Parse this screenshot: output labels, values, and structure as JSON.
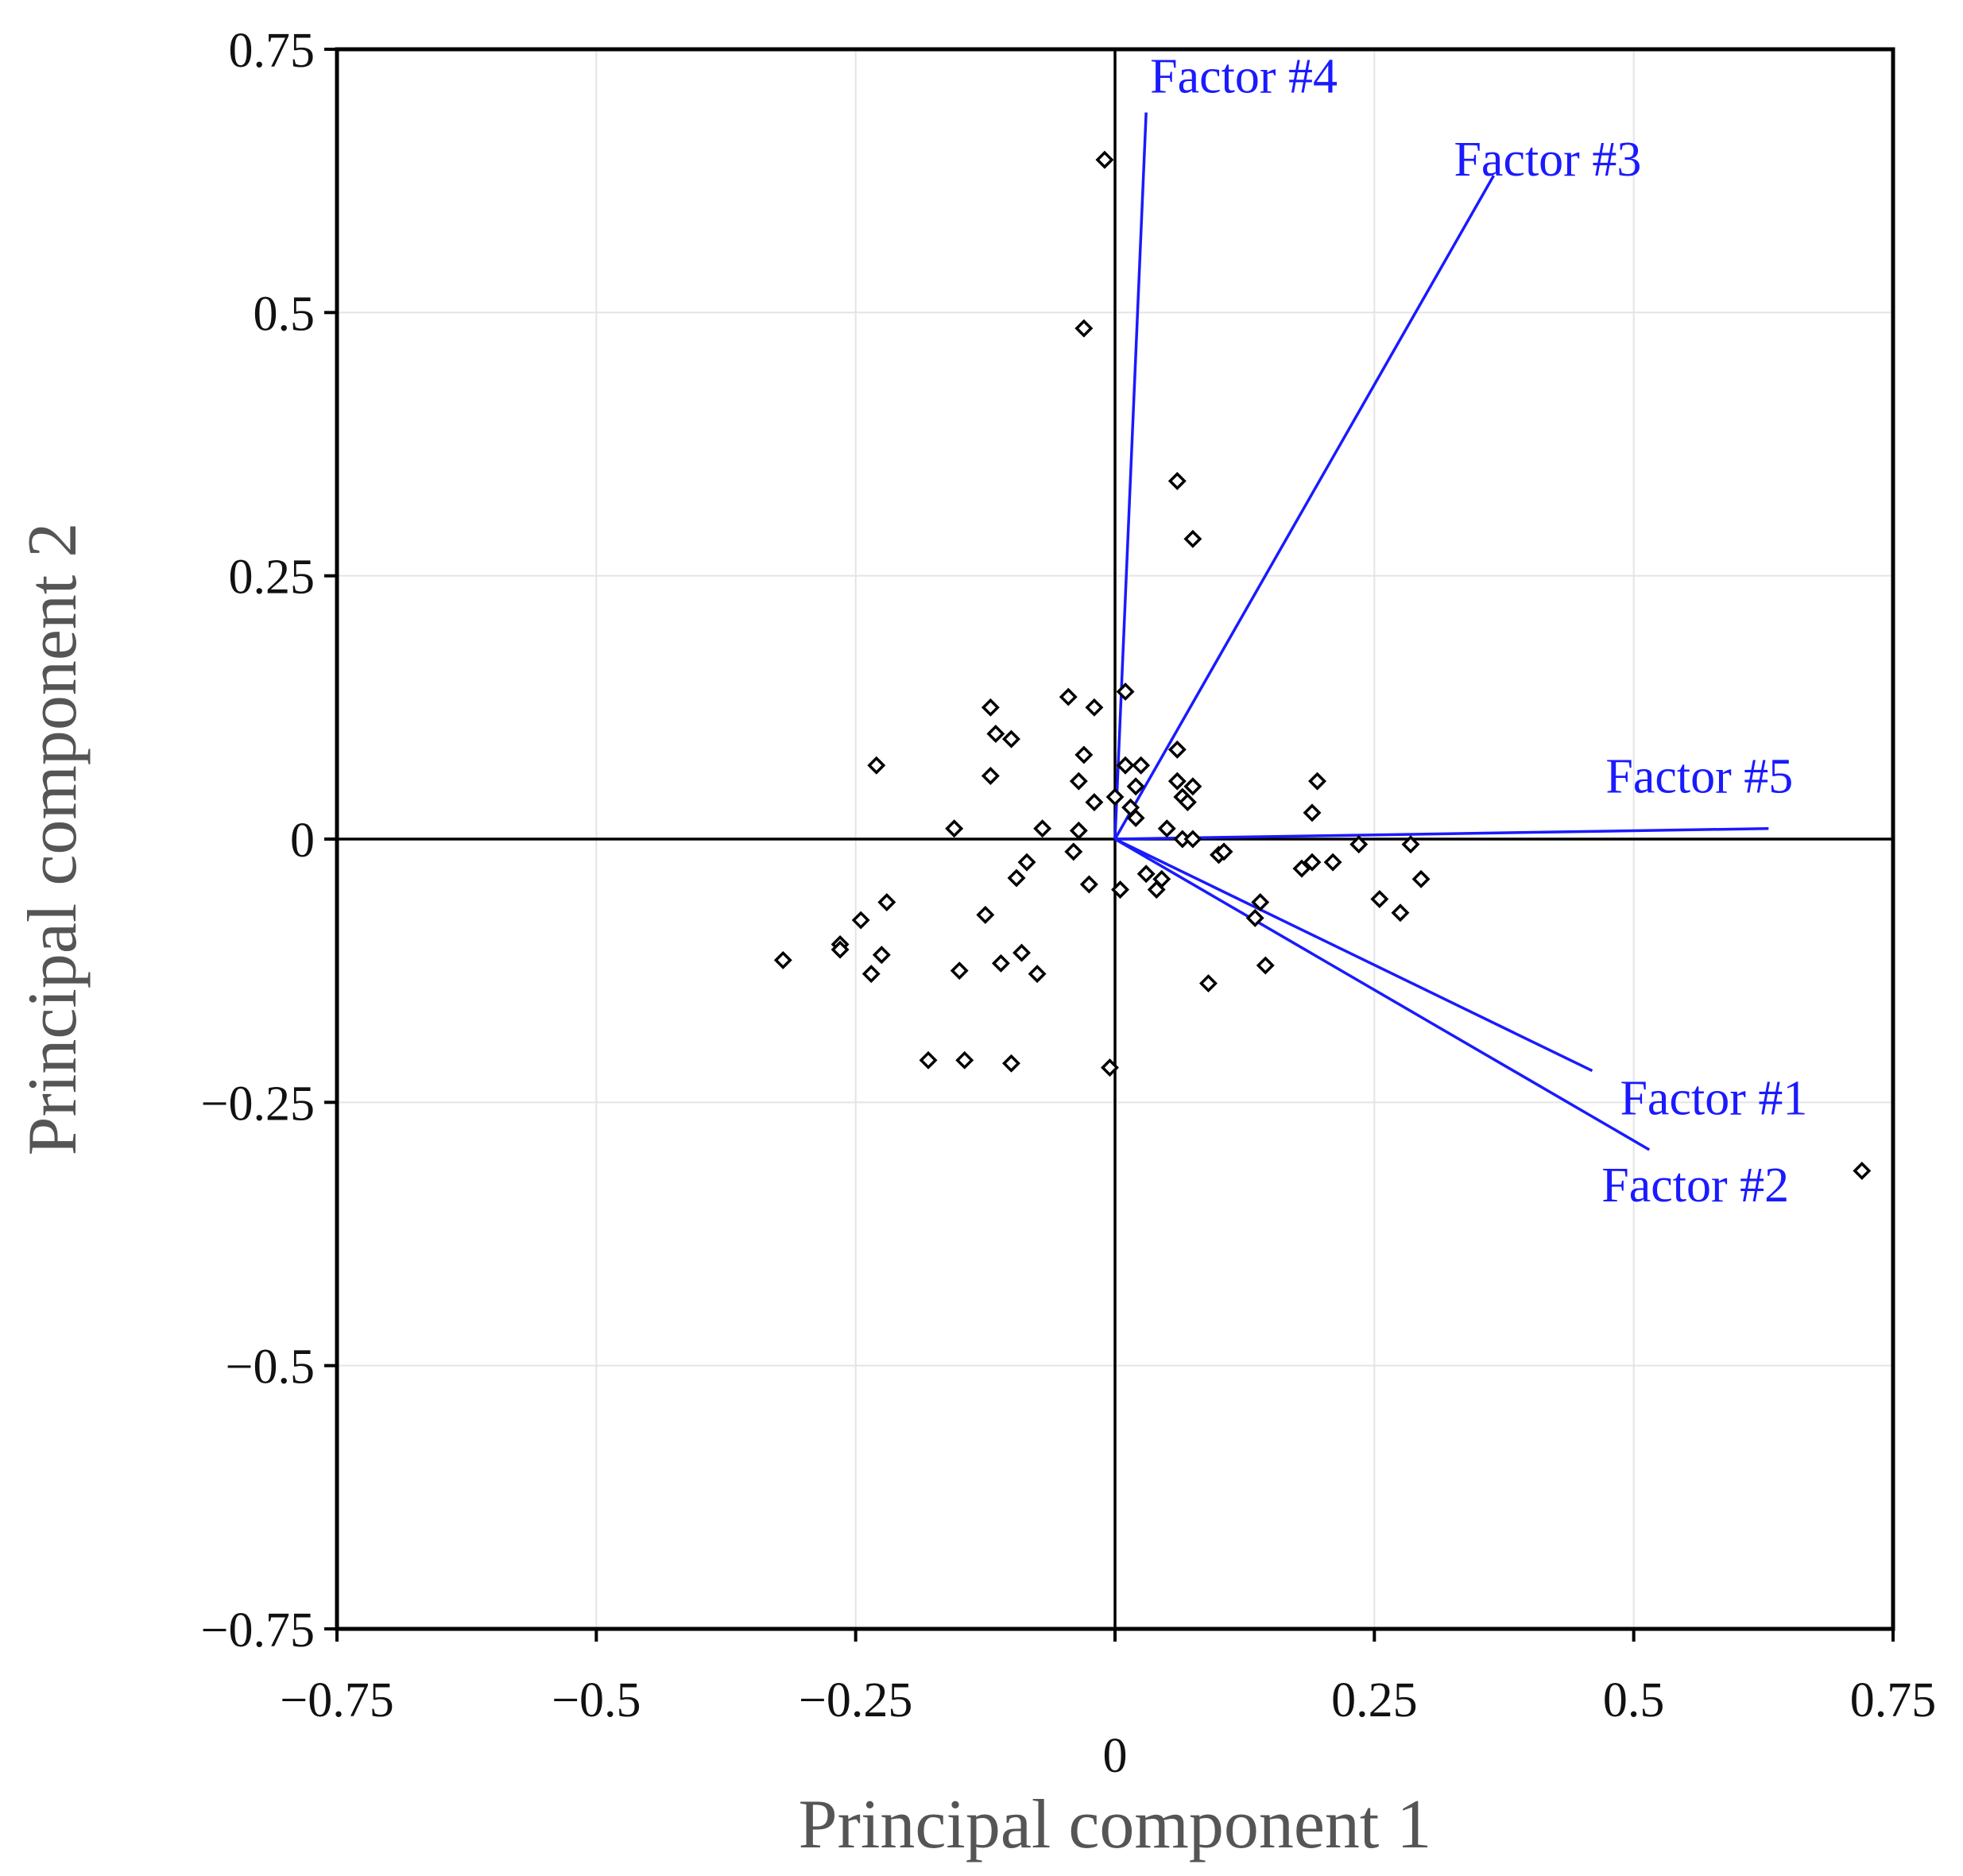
{
  "chart_data": {
    "type": "scatter",
    "title": "",
    "xlabel": "Principal component 1",
    "ylabel": "Principal component 2",
    "xlim": [
      -0.75,
      0.75
    ],
    "ylim": [
      -0.75,
      0.75
    ],
    "grid": true,
    "xticks": [
      -0.75,
      -0.5,
      -0.25,
      0,
      0.25,
      0.5,
      0.75
    ],
    "yticks": [
      -0.75,
      -0.5,
      -0.25,
      0,
      0.25,
      0.5,
      0.75
    ],
    "xtick_labels": [
      "−0.75",
      "−0.5",
      "−0.25",
      "0",
      "0.25",
      "0.5",
      "0.75"
    ],
    "ytick_labels": [
      "−0.75",
      "−0.5",
      "−0.25",
      "0",
      "0.25",
      "0.5",
      "0.75"
    ],
    "loadings": [
      {
        "name": "Factor #1",
        "x": 0.46,
        "y": -0.22
      },
      {
        "name": "Factor #2",
        "x": 0.515,
        "y": -0.295
      },
      {
        "name": "Factor #3",
        "x": 0.365,
        "y": 0.63
      },
      {
        "name": "Factor #4",
        "x": 0.03,
        "y": 0.69
      },
      {
        "name": "Factor #5",
        "x": 0.63,
        "y": 0.01
      }
    ],
    "points": [
      {
        "x": -0.01,
        "y": 0.645
      },
      {
        "x": -0.03,
        "y": 0.485
      },
      {
        "x": 0.06,
        "y": 0.34
      },
      {
        "x": 0.075,
        "y": 0.285
      },
      {
        "x": -0.045,
        "y": 0.135
      },
      {
        "x": -0.02,
        "y": 0.125
      },
      {
        "x": 0.01,
        "y": 0.14
      },
      {
        "x": -0.12,
        "y": 0.125
      },
      {
        "x": -0.115,
        "y": 0.1
      },
      {
        "x": -0.1,
        "y": 0.095
      },
      {
        "x": -0.12,
        "y": 0.06
      },
      {
        "x": -0.23,
        "y": 0.07
      },
      {
        "x": -0.03,
        "y": 0.08
      },
      {
        "x": -0.035,
        "y": 0.055
      },
      {
        "x": -0.02,
        "y": 0.035
      },
      {
        "x": 0.0,
        "y": 0.04
      },
      {
        "x": 0.01,
        "y": 0.07
      },
      {
        "x": 0.025,
        "y": 0.07
      },
      {
        "x": 0.02,
        "y": 0.05
      },
      {
        "x": 0.015,
        "y": 0.03
      },
      {
        "x": 0.02,
        "y": 0.02
      },
      {
        "x": 0.06,
        "y": 0.085
      },
      {
        "x": 0.06,
        "y": 0.055
      },
      {
        "x": 0.075,
        "y": 0.05
      },
      {
        "x": 0.065,
        "y": 0.04
      },
      {
        "x": 0.07,
        "y": 0.035
      },
      {
        "x": 0.05,
        "y": 0.01
      },
      {
        "x": 0.065,
        "y": 0.0
      },
      {
        "x": 0.075,
        "y": 0.0
      },
      {
        "x": -0.155,
        "y": 0.01
      },
      {
        "x": -0.07,
        "y": 0.01
      },
      {
        "x": -0.035,
        "y": 0.008
      },
      {
        "x": -0.04,
        "y": -0.012
      },
      {
        "x": -0.085,
        "y": -0.022
      },
      {
        "x": -0.095,
        "y": -0.037
      },
      {
        "x": -0.025,
        "y": -0.043
      },
      {
        "x": 0.005,
        "y": -0.048
      },
      {
        "x": 0.03,
        "y": -0.033
      },
      {
        "x": 0.045,
        "y": -0.038
      },
      {
        "x": 0.04,
        "y": -0.048
      },
      {
        "x": 0.1,
        "y": -0.015
      },
      {
        "x": 0.105,
        "y": -0.012
      },
      {
        "x": 0.195,
        "y": 0.055
      },
      {
        "x": 0.19,
        "y": 0.025
      },
      {
        "x": 0.18,
        "y": -0.028
      },
      {
        "x": 0.19,
        "y": -0.022
      },
      {
        "x": 0.21,
        "y": -0.022
      },
      {
        "x": 0.235,
        "y": -0.005
      },
      {
        "x": 0.285,
        "y": -0.005
      },
      {
        "x": 0.295,
        "y": -0.038
      },
      {
        "x": 0.255,
        "y": -0.057
      },
      {
        "x": 0.275,
        "y": -0.07
      },
      {
        "x": 0.14,
        "y": -0.06
      },
      {
        "x": 0.135,
        "y": -0.075
      },
      {
        "x": 0.145,
        "y": -0.12
      },
      {
        "x": 0.09,
        "y": -0.137
      },
      {
        "x": -0.125,
        "y": -0.072
      },
      {
        "x": -0.22,
        "y": -0.06
      },
      {
        "x": -0.245,
        "y": -0.077
      },
      {
        "x": -0.265,
        "y": -0.1
      },
      {
        "x": -0.265,
        "y": -0.105
      },
      {
        "x": -0.235,
        "y": -0.128
      },
      {
        "x": -0.225,
        "y": -0.11
      },
      {
        "x": -0.32,
        "y": -0.115
      },
      {
        "x": -0.15,
        "y": -0.125
      },
      {
        "x": -0.11,
        "y": -0.118
      },
      {
        "x": -0.09,
        "y": -0.108
      },
      {
        "x": -0.075,
        "y": -0.128
      },
      {
        "x": -0.18,
        "y": -0.21
      },
      {
        "x": -0.145,
        "y": -0.21
      },
      {
        "x": -0.1,
        "y": -0.213
      },
      {
        "x": -0.005,
        "y": -0.217
      },
      {
        "x": 0.72,
        "y": -0.315
      }
    ]
  }
}
